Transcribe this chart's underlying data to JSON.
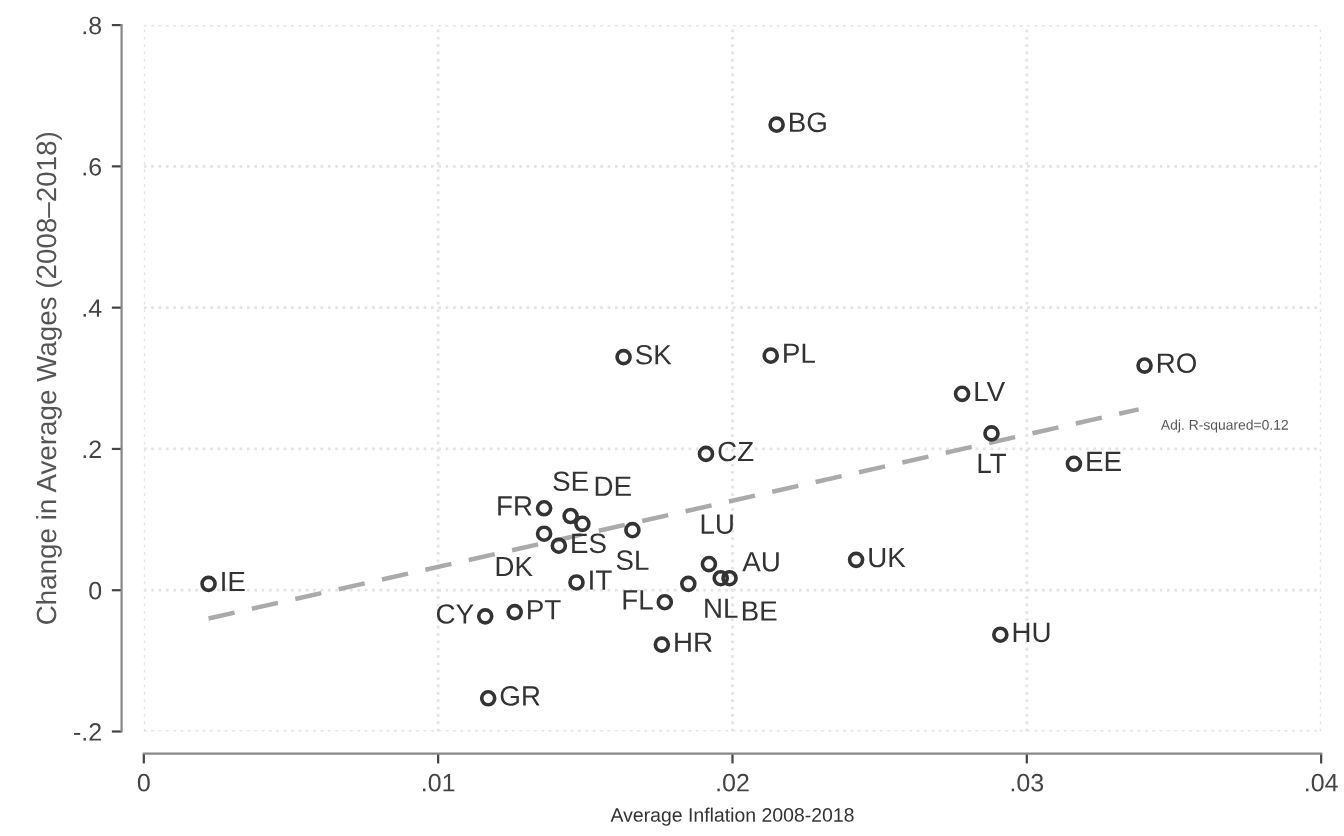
{
  "chart_data": {
    "type": "scatter",
    "xlabel": "Average Inflation 2008-2018",
    "ylabel": "Change in Average Wages (2008–2018)",
    "xlim": [
      0,
      0.04
    ],
    "ylim": [
      -0.2,
      0.8
    ],
    "xticks": [
      {
        "value": 0,
        "label": "0"
      },
      {
        "value": 0.01,
        "label": ".01"
      },
      {
        "value": 0.02,
        "label": ".02"
      },
      {
        "value": 0.03,
        "label": ".03"
      },
      {
        "value": 0.04,
        "label": ".04"
      }
    ],
    "yticks": [
      {
        "value": -0.2,
        "label": "-.2"
      },
      {
        "value": 0,
        "label": "0"
      },
      {
        "value": 0.2,
        "label": ".2"
      },
      {
        "value": 0.4,
        "label": ".4"
      },
      {
        "value": 0.6,
        "label": ".6"
      },
      {
        "value": 0.8,
        "label": ".8"
      }
    ],
    "grid": true,
    "marker": "circle",
    "series": [
      {
        "color": "#333333",
        "x": [
          0.0022,
          0.0215,
          0.0163,
          0.0213,
          0.0278,
          0.034,
          0.0288,
          0.0316,
          0.0191,
          0.0242,
          0.0291,
          0.0136,
          0.0145,
          0.0149,
          0.0136,
          0.0141,
          0.0166,
          0.0147,
          0.0116,
          0.0126,
          0.0117,
          0.0176,
          0.0177,
          0.0185,
          0.0192,
          0.0196,
          0.0199
        ],
        "values": [
          0.009,
          0.659,
          0.33,
          0.332,
          0.278,
          0.318,
          0.222,
          0.179,
          0.193,
          0.043,
          -0.063,
          0.116,
          0.105,
          0.094,
          0.08,
          0.063,
          0.085,
          0.011,
          -0.037,
          -0.031,
          -0.153,
          -0.077,
          -0.017,
          0.009,
          0.037,
          0.017,
          0.017
        ]
      },
      {
        "type": "line",
        "color": "#aaaaaa",
        "line_style": "dashed",
        "marker": "none",
        "x": [
          0.0022,
          0.0338
        ],
        "values": [
          -0.04,
          0.256
        ]
      }
    ],
    "annotations": [
      {
        "text": "IE",
        "x": 0.0022,
        "y": 0.009
      },
      {
        "text": "BG",
        "x": 0.0215,
        "y": 0.659
      },
      {
        "text": "SK",
        "x": 0.0163,
        "y": 0.33
      },
      {
        "text": "PL",
        "x": 0.0213,
        "y": 0.332
      },
      {
        "text": "LV",
        "x": 0.0278,
        "y": 0.278
      },
      {
        "text": "RO",
        "x": 0.034,
        "y": 0.318
      },
      {
        "text": "LT",
        "x": 0.0288,
        "y": 0.222
      },
      {
        "text": "EE",
        "x": 0.0316,
        "y": 0.179
      },
      {
        "text": "CZ",
        "x": 0.0191,
        "y": 0.193
      },
      {
        "text": "UK",
        "x": 0.0242,
        "y": 0.043
      },
      {
        "text": "HU",
        "x": 0.0291,
        "y": -0.063
      },
      {
        "text": "FR",
        "x": 0.0136,
        "y": 0.116
      },
      {
        "text": "SE",
        "x": 0.0145,
        "y": 0.105
      },
      {
        "text": "DE",
        "x": 0.0149,
        "y": 0.094
      },
      {
        "text": "DK",
        "x": 0.0136,
        "y": 0.08
      },
      {
        "text": "ES",
        "x": 0.0141,
        "y": 0.063
      },
      {
        "text": "SL",
        "x": 0.0166,
        "y": 0.085
      },
      {
        "text": "IT",
        "x": 0.0147,
        "y": 0.011
      },
      {
        "text": "CY",
        "x": 0.0116,
        "y": -0.037
      },
      {
        "text": "PT",
        "x": 0.0126,
        "y": -0.031
      },
      {
        "text": "GR",
        "x": 0.0117,
        "y": -0.153
      },
      {
        "text": "HR",
        "x": 0.0176,
        "y": -0.077
      },
      {
        "text": "FL",
        "x": 0.0177,
        "y": -0.017
      },
      {
        "text": "LU",
        "x": 0.0185,
        "y": 0.009
      },
      {
        "text": "AU",
        "x": 0.0192,
        "y": 0.037
      },
      {
        "text": "NL",
        "x": 0.0196,
        "y": 0.017
      },
      {
        "text": "BE",
        "x": 0.0199,
        "y": 0.017
      },
      "Adj. R-squared=0.12"
    ]
  }
}
